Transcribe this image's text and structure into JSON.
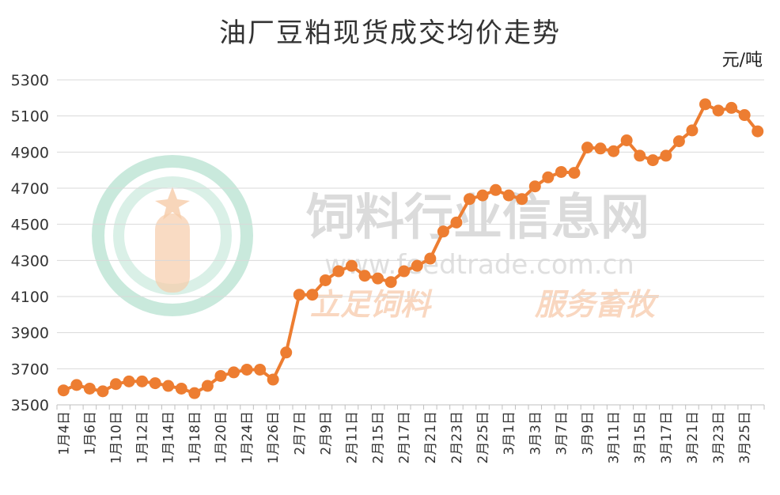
{
  "chart_data": {
    "type": "line",
    "title": "油厂豆粕现货成交均价走势",
    "unit": "元/吨",
    "ylim": [
      3500,
      5300
    ],
    "yticks": [
      3500,
      3700,
      3900,
      4100,
      4300,
      4500,
      4700,
      4900,
      5100,
      5300
    ],
    "x_labels": [
      "1月4日",
      "1月6日",
      "1月10日",
      "1月12日",
      "1月14日",
      "1月18日",
      "1月20日",
      "1月24日",
      "1月26日",
      "2月7日",
      "2月9日",
      "2月11日",
      "2月15日",
      "2月17日",
      "2月21日",
      "2月23日",
      "2月25日",
      "3月1日",
      "3月3日",
      "3月7日",
      "3月9日",
      "3月11日",
      "3月15日",
      "3月17日",
      "3月21日",
      "3月23日",
      "3月25日"
    ],
    "series": [
      {
        "color": "#ED7D31",
        "values": [
          3580,
          3610,
          3590,
          3575,
          3615,
          3630,
          3630,
          3620,
          3605,
          3590,
          3565,
          3605,
          3660,
          3680,
          3695,
          3695,
          3640,
          3790,
          4110,
          4110,
          4190,
          4240,
          4270,
          4215,
          4200,
          4180,
          4240,
          4270,
          4310,
          4460,
          4510,
          4640,
          4660,
          4690,
          4660,
          4640,
          4710,
          4760,
          4790,
          4785,
          4925,
          4920,
          4905,
          4965,
          4880,
          4855,
          4880,
          4960,
          5020,
          5165,
          5130,
          5145,
          5105,
          5015
        ]
      }
    ]
  },
  "watermark": {
    "name": "饲料行业信息网",
    "url": "www.feedtrade.com.cn",
    "slogan_left": "立足饲料",
    "slogan_right": "服务畜牧"
  }
}
